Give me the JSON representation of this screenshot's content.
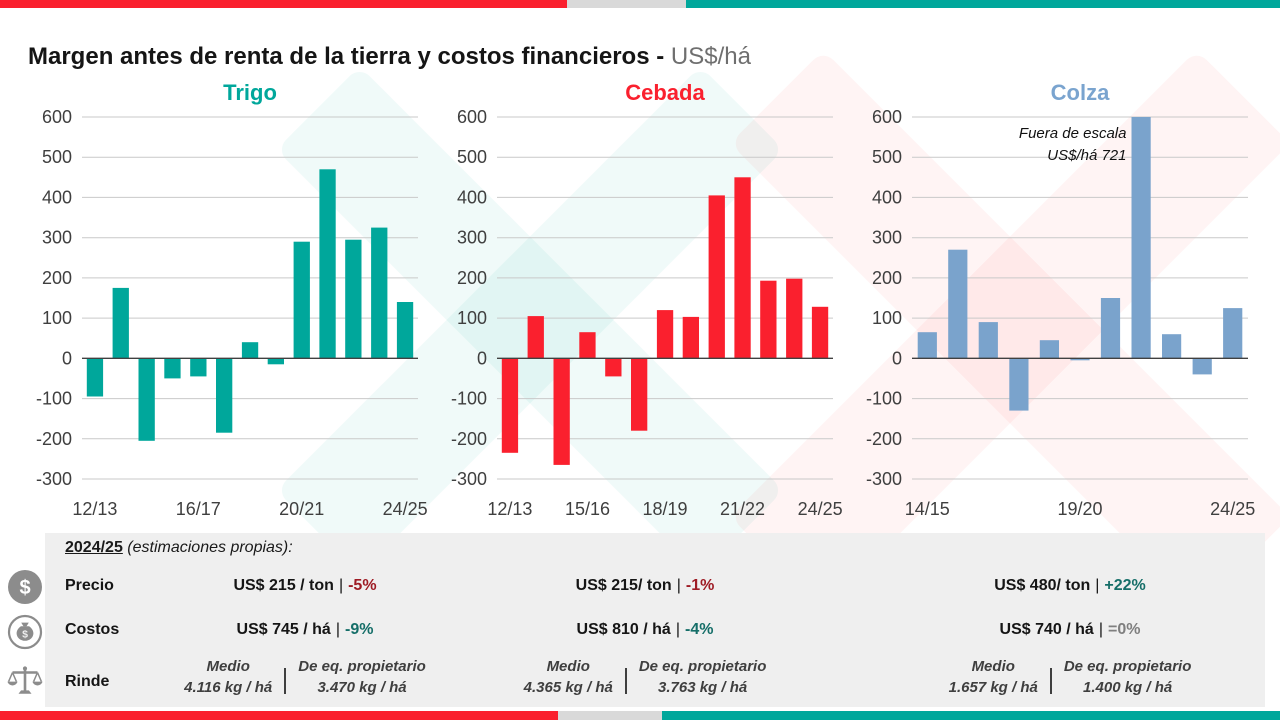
{
  "page": {
    "title_main": "Margen antes de renta de la tierra y costos financieros",
    "title_sep": " - ",
    "title_unit": "US$/há"
  },
  "colors": {
    "teal": "#00A79B",
    "red": "#FA202E",
    "blue": "#7AA3CC",
    "bar_gray": "#D9D9D9",
    "icon_gray": "#8C8C8C"
  },
  "chart_data": [
    {
      "type": "bar",
      "title": "Trigo",
      "title_color": "#00A79B",
      "bar_color": "#00A79B",
      "ylabel": "US$/há",
      "ylim": [
        -300,
        600
      ],
      "ytick_step": 100,
      "categories": [
        "12/13",
        "13/14",
        "14/15",
        "15/16",
        "16/17",
        "17/18",
        "18/19",
        "19/20",
        "20/21",
        "21/22",
        "22/23",
        "23/24",
        "24/25"
      ],
      "values": [
        -95,
        175,
        -205,
        -50,
        -45,
        -185,
        40,
        -15,
        290,
        470,
        295,
        325,
        140
      ],
      "x_ticks": [
        {
          "index": 0,
          "label": "12/13"
        },
        {
          "index": 4,
          "label": "16/17"
        },
        {
          "index": 8,
          "label": "20/21"
        },
        {
          "index": 12,
          "label": "24/25"
        }
      ]
    },
    {
      "type": "bar",
      "title": "Cebada",
      "title_color": "#FA202E",
      "bar_color": "#FA202E",
      "ylabel": "US$/há",
      "ylim": [
        -300,
        600
      ],
      "ytick_step": 100,
      "categories": [
        "12/13",
        "13/14",
        "14/15",
        "15/16",
        "16/17",
        "17/18",
        "18/19",
        "19/20",
        "20/21",
        "21/22",
        "22/23",
        "23/24",
        "24/25"
      ],
      "values": [
        -235,
        105,
        -265,
        65,
        -45,
        -180,
        120,
        103,
        405,
        450,
        193,
        198,
        128
      ],
      "x_ticks": [
        {
          "index": 0,
          "label": "12/13"
        },
        {
          "index": 3,
          "label": "15/16"
        },
        {
          "index": 6,
          "label": "18/19"
        },
        {
          "index": 9,
          "label": "21/22"
        },
        {
          "index": 12,
          "label": "24/25"
        }
      ]
    },
    {
      "type": "bar",
      "title": "Colza",
      "title_color": "#7AA4CF",
      "bar_color": "#7AA3CC",
      "ylabel": "US$/há",
      "ylim": [
        -300,
        600
      ],
      "ytick_step": 100,
      "clip_max": 600,
      "categories": [
        "14/15",
        "15/16",
        "16/17",
        "17/18",
        "18/19",
        "19/20",
        "20/21",
        "21/22",
        "22/23",
        "23/24",
        "24/25"
      ],
      "values": [
        65,
        270,
        90,
        -130,
        45,
        -5,
        150,
        721,
        60,
        -40,
        125
      ],
      "annotation": {
        "line1": "Fuera de escala",
        "line2": "US$/há 721",
        "at_index": 7
      },
      "x_ticks": [
        {
          "index": 0,
          "label": "14/15"
        },
        {
          "index": 5,
          "label": "19/20"
        },
        {
          "index": 10,
          "label": "24/25"
        }
      ]
    }
  ],
  "table": {
    "heading": {
      "period": "2024/25",
      "note": " (estimaciones propias):"
    },
    "rows": {
      "precio": {
        "label": "Precio",
        "icon": "dollar-circle-icon",
        "cells": [
          {
            "value": "US$ 215 / ton",
            "sep": "|",
            "pct": "-5%",
            "pct_color": "#9E1B24"
          },
          {
            "value": "US$ 215/ ton",
            "sep": "|",
            "pct": "-1%",
            "pct_color": "#9E1B24"
          },
          {
            "value": "US$ 480/ ton",
            "sep": "|",
            "pct": "+22%",
            "pct_color": "#156E68"
          }
        ]
      },
      "costos": {
        "label": "Costos",
        "icon": "money-bag-icon",
        "cells": [
          {
            "value": "US$ 745 / há",
            "sep": "|",
            "pct": "-9%",
            "pct_color": "#156E68"
          },
          {
            "value": "US$ 810 / há",
            "sep": "|",
            "pct": "-4%",
            "pct_color": "#156E68"
          },
          {
            "value": "US$ 740 / há",
            "sep": "|",
            "pct": "=0%",
            "pct_color": "#7F7F7F"
          }
        ]
      },
      "rinde": {
        "label": "Rinde",
        "icon": "scale-icon",
        "cells": [
          {
            "medio_label": "Medio",
            "medio_value": "4.116 kg / há",
            "eq_label": "De eq. propietario",
            "eq_value": "3.470 kg / há"
          },
          {
            "medio_label": "Medio",
            "medio_value": "4.365 kg / há",
            "eq_label": "De eq. propietario",
            "eq_value": "3.763 kg / há"
          },
          {
            "medio_label": "Medio",
            "medio_value": "1.657 kg / há",
            "eq_label": "De eq. propietario",
            "eq_value": "1.400 kg / há"
          }
        ]
      }
    }
  }
}
